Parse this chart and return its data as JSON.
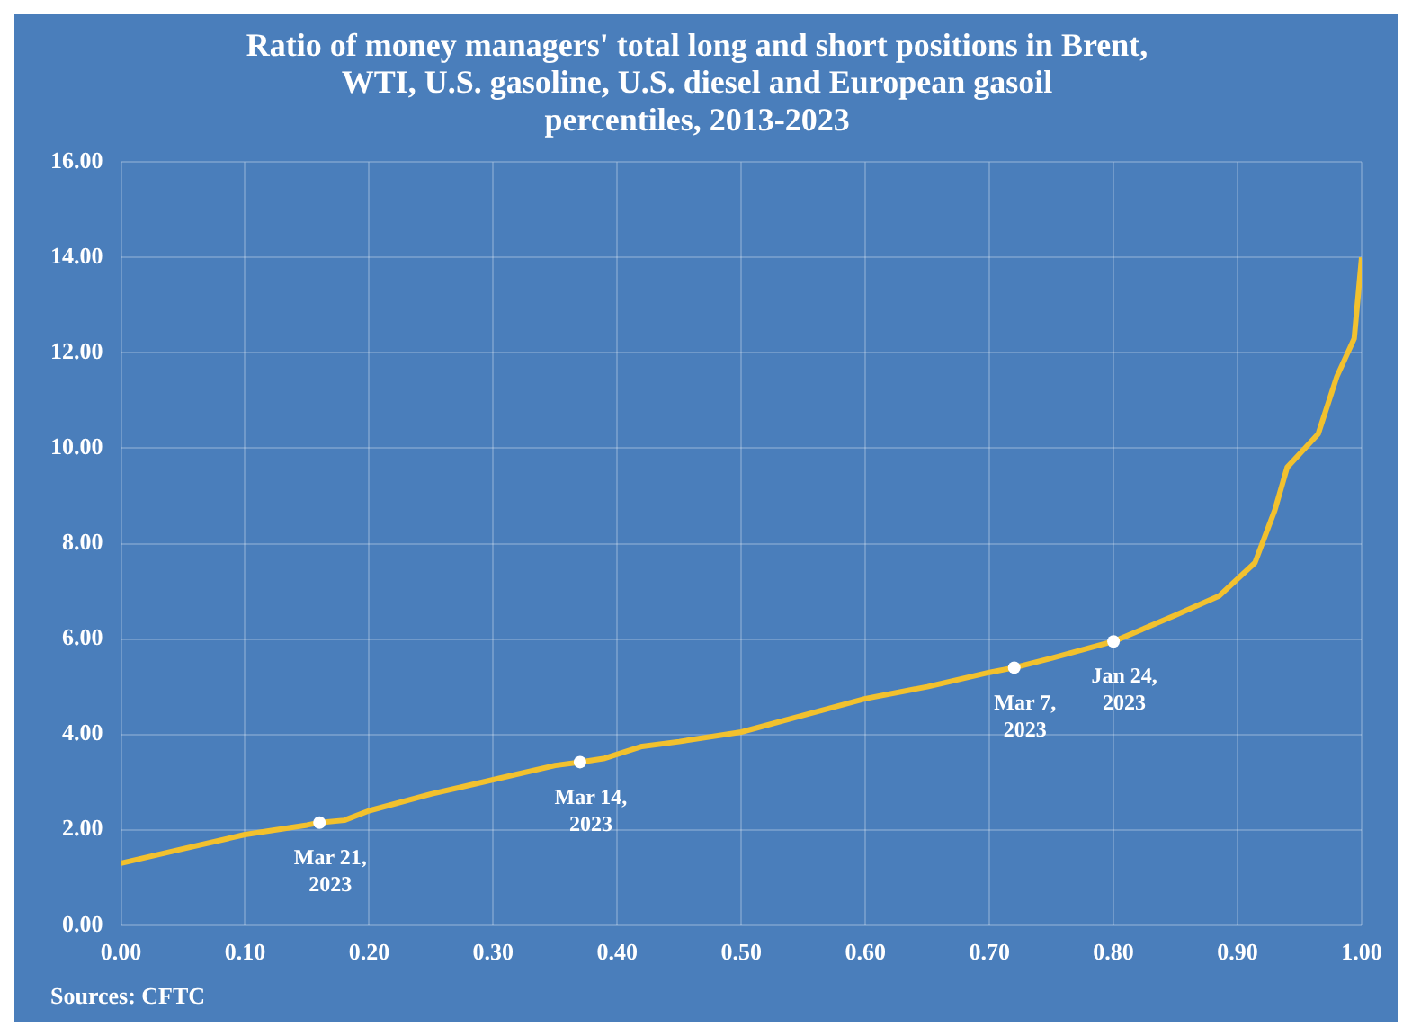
{
  "chart_data": {
    "type": "line",
    "title": "Ratio of money managers' total long and short positions in Brent,\nWTI, U.S. gasoline, U.S. diesel and European gasoil\npercentiles, 2013-2023",
    "x": [
      0,
      0.05,
      0.1,
      0.15,
      0.16,
      0.18,
      0.2,
      0.25,
      0.3,
      0.35,
      0.37,
      0.39,
      0.42,
      0.45,
      0.5,
      0.55,
      0.6,
      0.65,
      0.7,
      0.72,
      0.75,
      0.8,
      0.85,
      0.885,
      0.914,
      0.93,
      0.94,
      0.965,
      0.98,
      0.994,
      1.0
    ],
    "series": [
      {
        "color": "#f2c12e",
        "values": [
          1.3,
          1.6,
          1.9,
          2.1,
          2.15,
          2.2,
          2.4,
          2.75,
          3.05,
          3.35,
          3.42,
          3.5,
          3.75,
          3.85,
          4.05,
          4.4,
          4.75,
          5.0,
          5.3,
          5.4,
          5.6,
          5.95,
          6.5,
          6.9,
          7.6,
          8.7,
          9.6,
          10.3,
          11.5,
          12.3,
          14.0
        ]
      }
    ],
    "xlim": [
      0,
      1
    ],
    "xticks": [
      {
        "value": 0,
        "label": "0.00"
      },
      {
        "value": 0.1,
        "label": "0.10"
      },
      {
        "value": 0.2,
        "label": "0.20"
      },
      {
        "value": 0.3,
        "label": "0.30"
      },
      {
        "value": 0.4,
        "label": "0.40"
      },
      {
        "value": 0.5,
        "label": "0.50"
      },
      {
        "value": 0.6,
        "label": "0.60"
      },
      {
        "value": 0.7,
        "label": "0.70"
      },
      {
        "value": 0.8,
        "label": "0.80"
      },
      {
        "value": 0.9,
        "label": "0.90"
      },
      {
        "value": 1,
        "label": "1.00"
      }
    ],
    "ylim": [
      0,
      16
    ],
    "yticks": [
      {
        "value": 0,
        "label": "0.00"
      },
      {
        "value": 2,
        "label": "2.00"
      },
      {
        "value": 4,
        "label": "4.00"
      },
      {
        "value": 6,
        "label": "6.00"
      },
      {
        "value": 8,
        "label": "8.00"
      },
      {
        "value": 10,
        "label": "10.00"
      },
      {
        "value": 12,
        "label": "12.00"
      },
      {
        "value": 14,
        "label": "14.00"
      },
      {
        "value": 16,
        "label": "16.00"
      }
    ],
    "grid": true,
    "legend": false,
    "marker": "none",
    "line_style": "solid",
    "annotations": [
      {
        "text": "Mar 21,\n2023",
        "x": 0.16,
        "y": 2.15
      },
      {
        "text": "Mar 14,\n2023",
        "x": 0.37,
        "y": 3.42
      },
      {
        "text": "Mar 7,\n2023",
        "x": 0.72,
        "y": 5.4
      },
      {
        "text": "Jan 24,\n2023",
        "x": 0.8,
        "y": 5.95
      },
      "Sources: CFTC"
    ]
  }
}
